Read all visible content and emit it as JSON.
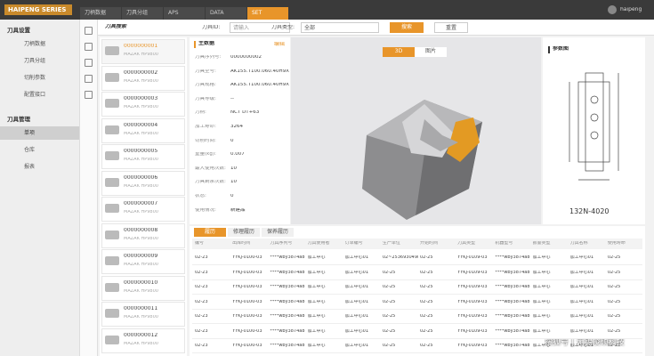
{
  "header": {
    "logo": "HAIPENG SERIES",
    "tabs": [
      "刀柄数据",
      "刀具分组",
      "APS",
      "DATA",
      "SET"
    ],
    "user": "haipeng"
  },
  "sidebar": {
    "groups": [
      {
        "title": "刀具设置",
        "items": [
          "刀柄数据",
          "刀具分组",
          "切削参数",
          "配置接口"
        ]
      },
      {
        "title": "刀具管理",
        "items": [
          "单项",
          "仓库",
          "报表"
        ]
      }
    ]
  },
  "search": {
    "title": "刀具搜索",
    "id_label": "刀具ID:",
    "id_placeholder": "请输入",
    "type_label": "刀具类型:",
    "type_value": "全部",
    "search_btn": "搜索",
    "reset_btn": "重置"
  },
  "tool_list": [
    {
      "id": "0000000001",
      "desc": "MAZAK HP9800"
    },
    {
      "id": "0000000002",
      "desc": "MAZAK HP9800"
    },
    {
      "id": "0000000003",
      "desc": "MAZAK HP9800"
    },
    {
      "id": "0000000004",
      "desc": "MAZAK HP9800"
    },
    {
      "id": "0000000005",
      "desc": "MAZAK HP9800"
    },
    {
      "id": "0000000006",
      "desc": "MAZAK HP9800"
    },
    {
      "id": "0000000007",
      "desc": "MAZAK HP9800"
    },
    {
      "id": "0000000008",
      "desc": "MAZAK HP9800"
    },
    {
      "id": "0000000009",
      "desc": "MAZAK HP9800"
    },
    {
      "id": "0000000010",
      "desc": "MAZAK HP9800"
    },
    {
      "id": "0000000011",
      "desc": "MAZAK HP9800"
    },
    {
      "id": "0000000012",
      "desc": "MAZAK HP9800"
    }
  ],
  "main_data": {
    "title": "主数据",
    "edit": "编辑",
    "fields": [
      [
        "刀具序列号:",
        "0000000002"
      ],
      [
        "刀具型号:",
        "AK155.T100.060.40H9X"
      ],
      [
        "刀具规格:",
        "AK155.T100.060.40H9X"
      ],
      [
        "刀具等级:",
        "--"
      ],
      [
        "刀柄:",
        "NCT DT+63"
      ],
      [
        "加工寿命:",
        "3264"
      ],
      [
        "切削时间:",
        "0"
      ],
      [
        "重量(kg):",
        "0.007"
      ],
      [
        "最大使用次数:",
        "10"
      ],
      [
        "刀具剩余次数:",
        "10"
      ],
      [
        "状态:",
        "0"
      ],
      [
        "使用情况:",
        "新建品"
      ]
    ]
  },
  "viewer": {
    "tabs": [
      "3D",
      "图片"
    ]
  },
  "param": {
    "title": "参数图",
    "label": "132N-4020"
  },
  "history": {
    "tabs": [
      "履历",
      "修理履历",
      "保养履历"
    ],
    "columns": [
      "编号",
      "出库时间",
      "刀具序列号",
      "刀具使用者",
      "订单编号",
      "生产单位",
      "开始时间",
      "刀具类型",
      "机器型号",
      "报警类型",
      "刀具名称",
      "使用寿命"
    ],
    "rows": [
      [
        "02-23",
        "YYKJ-0100-03",
        "****wby3874a8",
        "加工中心",
        "加工中心01",
        "02~2536930498823986",
        "02-25",
        "YYKJ-0109-03",
        "****wby3874a8",
        "加工中心",
        "加工中心01",
        "02-25"
      ],
      [
        "02-23",
        "YYKJ-0100-03",
        "****wby3874a8",
        "加工中心",
        "加工中心01",
        "02-25",
        "02-25",
        "YYKJ-0109-03",
        "****wby3874a8",
        "加工中心",
        "加工中心01",
        "02-25"
      ],
      [
        "02-23",
        "YYKJ-0100-03",
        "****wby3874a8",
        "加工中心",
        "加工中心01",
        "02-25",
        "02-25",
        "YYKJ-0109-03",
        "****wby3874a8",
        "加工中心",
        "加工中心01",
        "02-25"
      ],
      [
        "02-23",
        "YYKJ-0100-03",
        "****wby3874a8",
        "加工中心",
        "加工中心01",
        "02-25",
        "02-25",
        "YYKJ-0109-03",
        "****wby3874a8",
        "加工中心",
        "加工中心01",
        "02-25"
      ],
      [
        "02-23",
        "YYKJ-0100-03",
        "****wby3874a8",
        "加工中心",
        "加工中心01",
        "02-25",
        "02-25",
        "YYKJ-0109-03",
        "****wby3874a8",
        "加工中心",
        "加工中心01",
        "02-25"
      ],
      [
        "02-23",
        "YYKJ-0100-03",
        "****wby3874a8",
        "加工中心",
        "加工中心01",
        "02-25",
        "02-25",
        "YYKJ-0109-03",
        "****wby3874a8",
        "加工中心",
        "加工中心01",
        "02-25"
      ],
      [
        "02-23",
        "YYKJ-0100-03",
        "****wby3874a8",
        "加工中心",
        "加工中心01",
        "02-25",
        "02-25",
        "YYKJ-0109-03",
        "****wby3874a8",
        "加工中心",
        "加工中心01",
        "02-25"
      ]
    ]
  },
  "watermark": "搜狐号 | 无锡凌硕科技"
}
